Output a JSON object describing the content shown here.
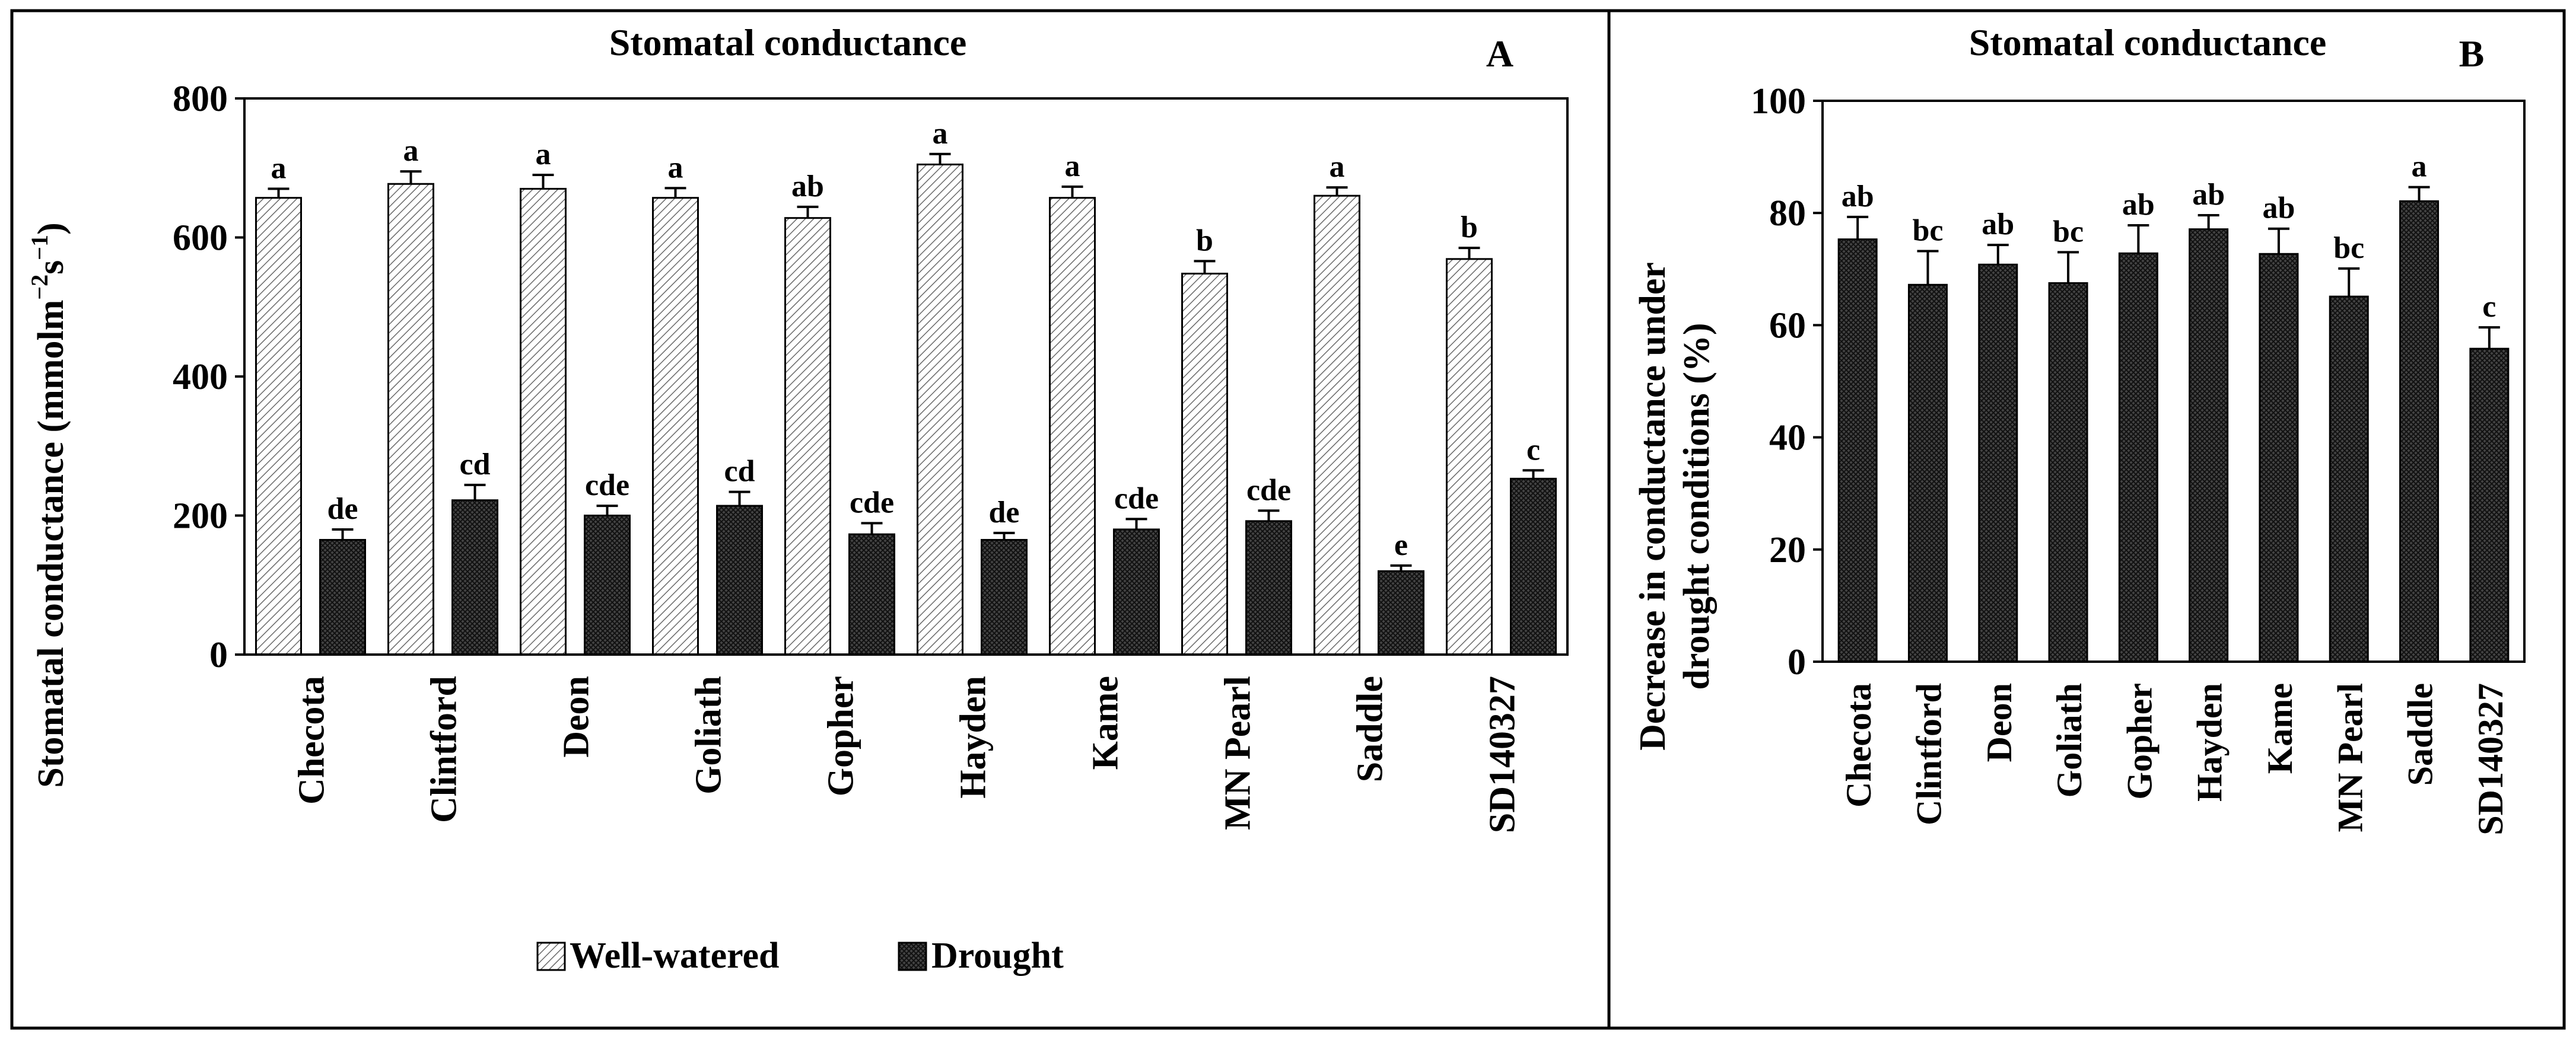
{
  "chart_data": [
    {
      "type": "bar",
      "panel_label": "A",
      "title": "Stomatal conductance",
      "xlabel": "",
      "ylabel": "Stomatal conductance (mmolm",
      "ylabel_sup1": "−2",
      "ylabel_mid": "s",
      "ylabel_sup2": "−1",
      "ylabel_end": ")",
      "ylim": [
        0,
        800
      ],
      "yticks": [
        "0",
        "200",
        "400",
        "600",
        "800"
      ],
      "categories": [
        "Checota",
        "Clintford",
        "Deon",
        "Goliath",
        "Gopher",
        "Hayden",
        "Kame",
        "MN Pearl",
        "Saddle",
        "SD140327"
      ],
      "series": [
        {
          "name": "Well-watered",
          "values": [
            657,
            677,
            670,
            657,
            628,
            705,
            657,
            548,
            660,
            569
          ],
          "errors": [
            13,
            18,
            20,
            14,
            16,
            15,
            16,
            18,
            12,
            16
          ],
          "letters": [
            "a",
            "a",
            "a",
            "a",
            "ab",
            "a",
            "a",
            "b",
            "a",
            "b"
          ]
        },
        {
          "name": "Drought",
          "values": [
            165,
            222,
            200,
            214,
            173,
            165,
            180,
            192,
            120,
            253
          ],
          "errors": [
            15,
            22,
            14,
            20,
            16,
            10,
            15,
            15,
            8,
            12
          ],
          "letters": [
            "de",
            "cd",
            "cde",
            "cd",
            "cde",
            "de",
            "cde",
            "cde",
            "e",
            "c"
          ]
        }
      ],
      "legend": [
        "Well-watered",
        "Drought"
      ],
      "legend_position": "bottom"
    },
    {
      "type": "bar",
      "panel_label": "B",
      "title": "Stomatal conductance",
      "xlabel": "",
      "ylabel_line1": "Decrease in conductance under",
      "ylabel_line2": "drought conditions (%)",
      "ylim": [
        0,
        100
      ],
      "yticks": [
        "0",
        "20",
        "40",
        "60",
        "80",
        "100"
      ],
      "categories": [
        "Checota",
        "Clintford",
        "Deon",
        "Goliath",
        "Gopher",
        "Hayden",
        "Kame",
        "MN Pearl",
        "Saddle",
        "SD140327"
      ],
      "series": [
        {
          "name": "Decrease in conductance",
          "values": [
            75.3,
            67.2,
            70.8,
            67.5,
            72.8,
            77.1,
            72.7,
            65.1,
            82.1,
            55.8
          ],
          "errors": [
            4.0,
            6.0,
            3.5,
            5.5,
            5.0,
            2.5,
            4.5,
            5.0,
            2.5,
            3.8
          ],
          "letters": [
            "ab",
            "bc",
            "ab",
            "bc",
            "ab",
            "ab",
            "ab",
            "bc",
            "a",
            "c"
          ]
        }
      ]
    }
  ]
}
